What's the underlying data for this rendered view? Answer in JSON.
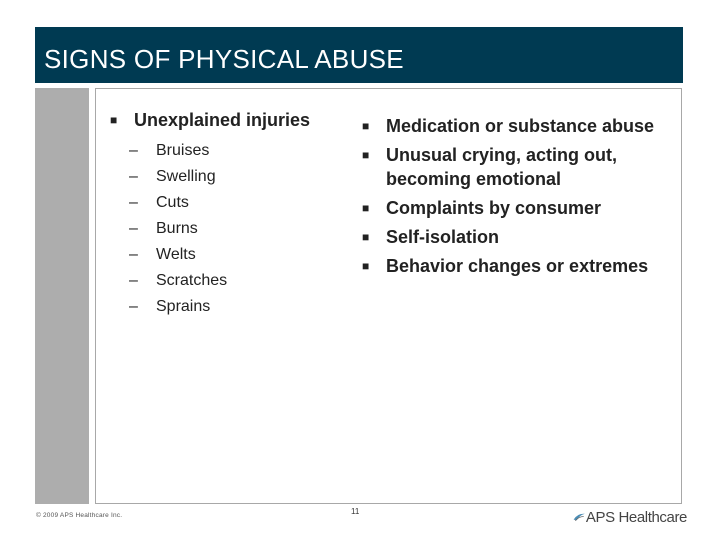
{
  "slide": {
    "title": "SIGNS OF PHYSICAL ABUSE",
    "page_number": "11",
    "footer_copyright": "© 2009 APS Healthcare Inc."
  },
  "left_column": {
    "heading": "Unexplained injuries",
    "items": [
      "Bruises",
      "Swelling",
      "Cuts",
      "Burns",
      "Welts",
      "Scratches",
      "Sprains"
    ]
  },
  "right_column": {
    "items": [
      "Medication or substance abuse",
      "Unusual crying, acting out, becoming emotional",
      "Complaints by consumer",
      "Self-isolation",
      "Behavior changes or extremes"
    ]
  },
  "logo": {
    "text": "APS Healthcare",
    "icon": "aps-swoosh-icon"
  },
  "colors": {
    "title_bar": "#003a52",
    "left_band": "#adadad",
    "text": "#222222",
    "logo_accent": "#4a8db5"
  }
}
